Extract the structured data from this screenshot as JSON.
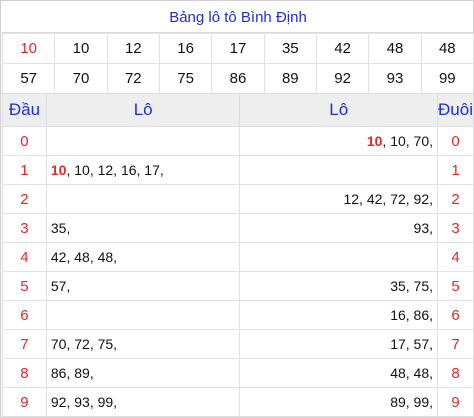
{
  "title": "Bảng lô tô Bình Định",
  "numbers_row1": [
    "10",
    "10",
    "12",
    "16",
    "17",
    "35",
    "42",
    "48",
    "48"
  ],
  "numbers_row2": [
    "57",
    "70",
    "72",
    "75",
    "86",
    "89",
    "92",
    "93",
    "99"
  ],
  "highlight_index": 0,
  "headers": {
    "dau": "Đầu",
    "lo_left": "Lô",
    "lo_right": "Lô",
    "duoi": "Đuôi"
  },
  "rows": [
    {
      "digit": "0",
      "left_hl": "",
      "left": "",
      "right_hl": "10",
      "right": ", 10, 70,",
      "tail": "0"
    },
    {
      "digit": "1",
      "left_hl": "10",
      "left": ", 10, 12, 16, 17,",
      "right_hl": "",
      "right": "",
      "tail": "1"
    },
    {
      "digit": "2",
      "left_hl": "",
      "left": "",
      "right_hl": "",
      "right": "12, 42, 72, 92,",
      "tail": "2"
    },
    {
      "digit": "3",
      "left_hl": "",
      "left": "35,",
      "right_hl": "",
      "right": "93,",
      "tail": "3"
    },
    {
      "digit": "4",
      "left_hl": "",
      "left": "42, 48, 48,",
      "right_hl": "",
      "right": "",
      "tail": "4"
    },
    {
      "digit": "5",
      "left_hl": "",
      "left": "57,",
      "right_hl": "",
      "right": "35, 75,",
      "tail": "5"
    },
    {
      "digit": "6",
      "left_hl": "",
      "left": "",
      "right_hl": "",
      "right": "16, 86,",
      "tail": "6"
    },
    {
      "digit": "7",
      "left_hl": "",
      "left": "70, 72, 75,",
      "right_hl": "",
      "right": "17, 57,",
      "tail": "7"
    },
    {
      "digit": "8",
      "left_hl": "",
      "left": "86, 89,",
      "right_hl": "",
      "right": "48, 48,",
      "tail": "8"
    },
    {
      "digit": "9",
      "left_hl": "",
      "left": "92, 93, 99,",
      "right_hl": "",
      "right": "89, 99,",
      "tail": "9"
    }
  ],
  "colors": {
    "title": "#1d2fd1",
    "highlight": "#e02828",
    "header_bg": "#eeeeee"
  }
}
